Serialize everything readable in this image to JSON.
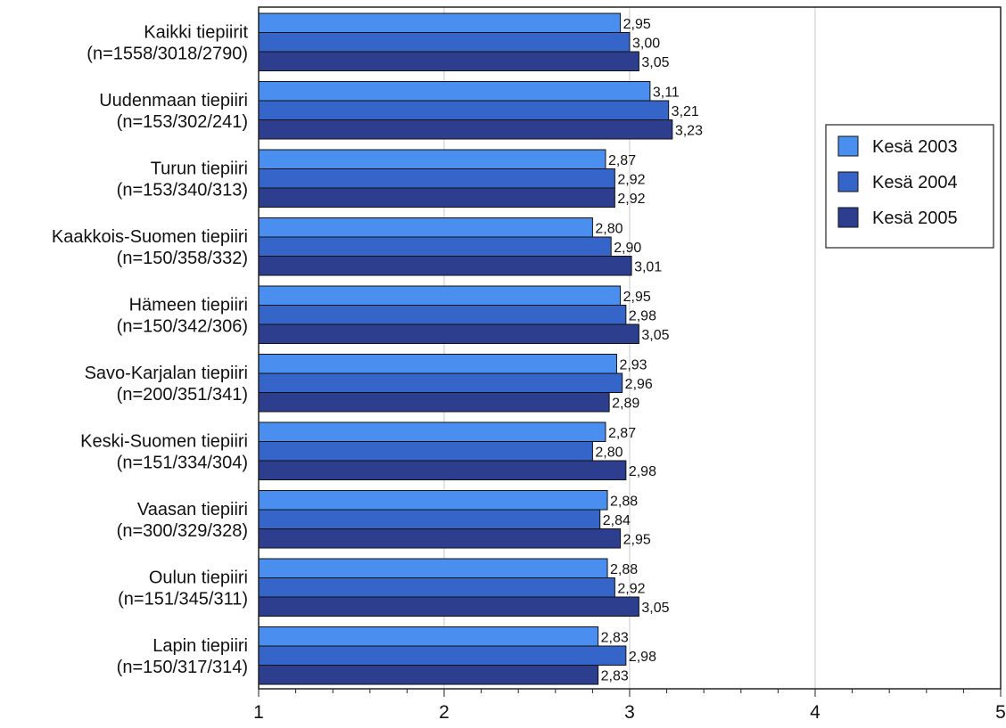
{
  "chart_data": {
    "type": "bar",
    "orientation": "horizontal",
    "categories": [
      [
        "Kaikki tiepiirit",
        "(n=1558/3018/2790)"
      ],
      [
        "Uudenmaan tiepiiri",
        "(n=153/302/241)"
      ],
      [
        "Turun tiepiiri",
        "(n=153/340/313)"
      ],
      [
        "Kaakkois-Suomen tiepiiri",
        "(n=150/358/332)"
      ],
      [
        "Hämeen tiepiiri",
        "(n=150/342/306)"
      ],
      [
        "Savo-Karjalan tiepiiri",
        "(n=200/351/341)"
      ],
      [
        "Keski-Suomen tiepiiri",
        "(n=151/334/304)"
      ],
      [
        "Vaasan tiepiiri",
        "(n=300/329/328)"
      ],
      [
        "Oulun tiepiiri",
        "(n=151/345/311)"
      ],
      [
        "Lapin tiepiiri",
        "(n=150/317/314)"
      ]
    ],
    "series": [
      {
        "name": "Kesä 2003",
        "color": "#4a8ff0",
        "values": [
          2.95,
          3.11,
          2.87,
          2.8,
          2.95,
          2.93,
          2.87,
          2.88,
          2.88,
          2.83
        ],
        "labels": [
          "2,95",
          "3,11",
          "2,87",
          "2,80",
          "2,95",
          "2,93",
          "2,87",
          "2,88",
          "2,88",
          "2,83"
        ]
      },
      {
        "name": "Kesä 2004",
        "color": "#3565c8",
        "values": [
          3.0,
          3.21,
          2.92,
          2.9,
          2.98,
          2.96,
          2.8,
          2.84,
          2.92,
          2.98
        ],
        "labels": [
          "3,00",
          "3,21",
          "2,92",
          "2,90",
          "2,98",
          "2,96",
          "2,80",
          "2,84",
          "2,92",
          "2,98"
        ]
      },
      {
        "name": "Kesä 2005",
        "color": "#2d3e8e",
        "values": [
          3.05,
          3.23,
          2.92,
          3.01,
          3.05,
          2.89,
          2.98,
          2.95,
          3.05,
          2.83
        ],
        "labels": [
          "3,05",
          "3,23",
          "2,92",
          "3,01",
          "3,05",
          "2,89",
          "2,98",
          "2,95",
          "3,05",
          "2,83"
        ]
      }
    ],
    "xlim": [
      1,
      5
    ],
    "xticks": [
      1,
      2,
      3,
      4,
      5
    ],
    "xlabel": "",
    "ylabel": "",
    "grid": true,
    "legend_position": "right"
  }
}
